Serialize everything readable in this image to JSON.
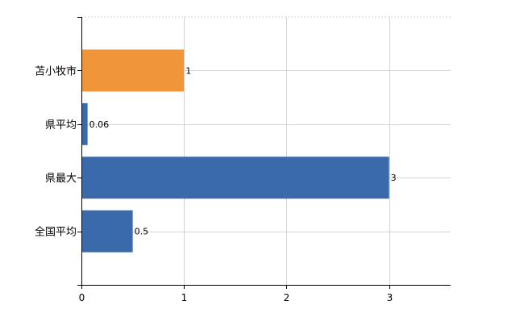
{
  "chart_data": {
    "type": "bar",
    "orientation": "horizontal",
    "categories": [
      "苫小牧市",
      "県平均",
      "県最大",
      "全国平均"
    ],
    "values": [
      1,
      0.06,
      3,
      0.5
    ],
    "value_labels": [
      "1",
      "0.06",
      "3",
      "0.5"
    ],
    "colors": [
      "#f0953a",
      "#3a6aaa",
      "#3a6aaa",
      "#3a6aaa"
    ],
    "xlim": [
      0,
      3.6
    ],
    "xticks": [
      "0",
      "1",
      "2",
      "3"
    ],
    "title": "",
    "xlabel": "",
    "ylabel": "",
    "grid": true,
    "legend": "none"
  }
}
